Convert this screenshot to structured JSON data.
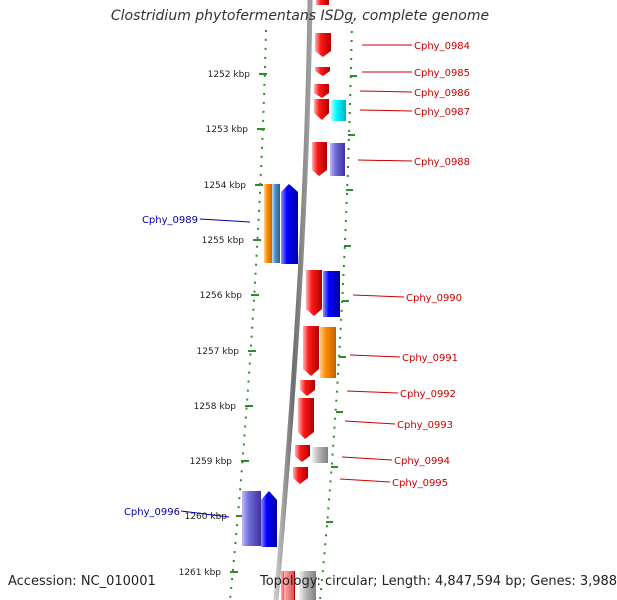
{
  "title": "Clostridium phytofermentans ISDg, complete genome",
  "accession": "Accession: NC_010001",
  "topology": "Topology: circular; Length: 4,847,594 bp; Genes: 3,988",
  "colors": {
    "backbone": "#8a8a8a",
    "tick": "#2e8b2e",
    "right_label": "#cc0000",
    "left_label": "#0000aa"
  },
  "scale_labels": [
    "1252 kbp",
    "1253 kbp",
    "1254 kbp",
    "1255 kbp",
    "1256 kbp",
    "1257 kbp",
    "1258 kbp",
    "1259 kbp",
    "1260 kbp",
    "1261 kbp"
  ],
  "gene_labels_right": [
    "Cphy_0984",
    "Cphy_0985",
    "Cphy_0986",
    "Cphy_0987",
    "Cphy_0988",
    "Cphy_0990",
    "Cphy_0991",
    "Cphy_0992",
    "Cphy_0993",
    "Cphy_0994",
    "Cphy_0995"
  ],
  "gene_labels_left": [
    "Cphy_0989",
    "Cphy_0996"
  ]
}
